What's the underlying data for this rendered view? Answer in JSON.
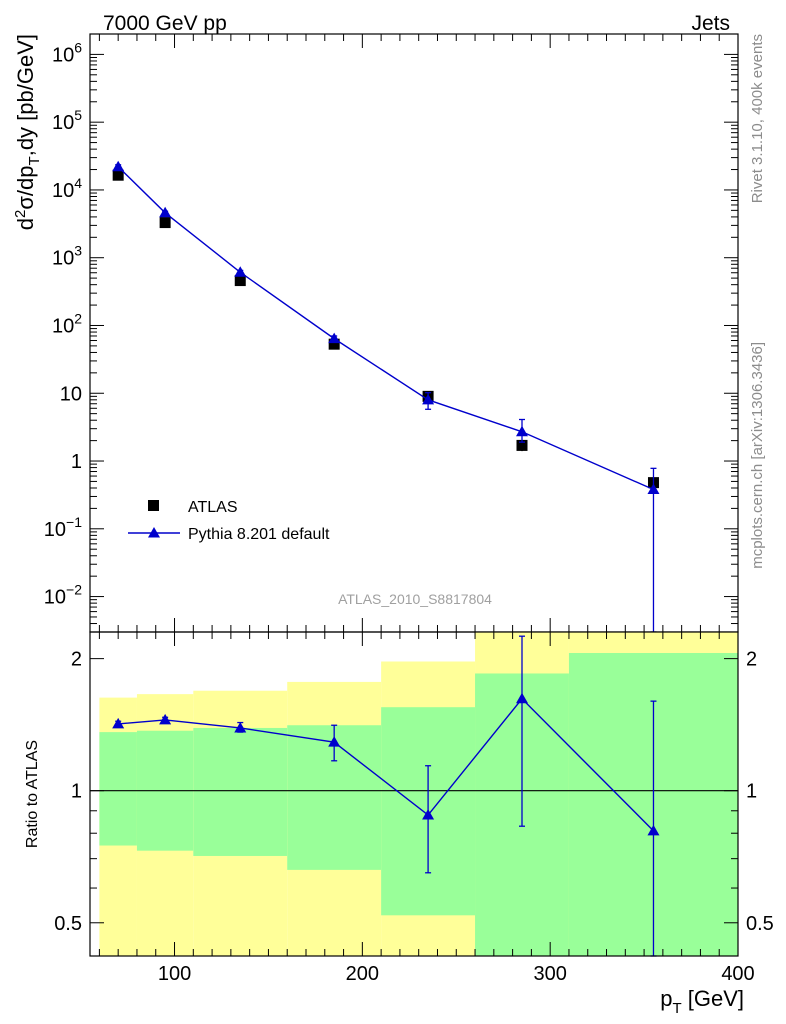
{
  "header": {
    "left": "7000 GeV pp",
    "right": "Jets"
  },
  "side_labels": {
    "top": "Rivet 3.1.10,  400k events",
    "bottom": "mcplots.cern.ch [arXiv:1306.3436]"
  },
  "watermark": "ATLAS_2010_S8817804",
  "colors": {
    "mc": "#0000cc",
    "data": "#000000",
    "band_outer": "#ffff99",
    "band_inner": "#99ff99"
  },
  "chart_data": [
    {
      "type": "scatter",
      "panel": "main",
      "ylabel": {
        "base": "d",
        "sup": "2",
        "mid": "σ/dp",
        "sub": "T",
        "tail": ",dy [pb/GeV]"
      },
      "yscale": "log",
      "ylim": [
        0.003,
        2000000
      ],
      "xlim": [
        55,
        400
      ],
      "ytick_labels": [
        {
          "value": 1000000,
          "base": "10",
          "exp": "6"
        },
        {
          "value": 100000,
          "base": "10",
          "exp": "5"
        },
        {
          "value": 10000,
          "base": "10",
          "exp": "4"
        },
        {
          "value": 1000,
          "base": "10",
          "exp": "3"
        },
        {
          "value": 100,
          "base": "10",
          "exp": "2"
        },
        {
          "value": 10,
          "base": "10",
          "exp": ""
        },
        {
          "value": 1,
          "base": "1",
          "exp": ""
        },
        {
          "value": 0.1,
          "base": "10",
          "exp": "−1"
        },
        {
          "value": 0.01,
          "base": "10",
          "exp": "−2"
        }
      ],
      "legend": {
        "placement": "bottom-left",
        "entries": [
          "ATLAS",
          "Pythia 8.201 default"
        ]
      },
      "series": [
        {
          "name": "ATLAS",
          "marker": "square",
          "points": [
            {
              "x": 70,
              "y": 16500,
              "xlo": 60,
              "xhi": 80,
              "ylo": 14500,
              "yhi": 18500
            },
            {
              "x": 95,
              "y": 3300,
              "xlo": 80,
              "xhi": 110,
              "ylo": 2950,
              "yhi": 3700
            },
            {
              "x": 135,
              "y": 460,
              "xlo": 110,
              "xhi": 160,
              "ylo": 415,
              "yhi": 510
            },
            {
              "x": 185,
              "y": 53,
              "xlo": 160,
              "xhi": 210,
              "ylo": 47,
              "yhi": 59
            },
            {
              "x": 235,
              "y": 9.0,
              "xlo": 210,
              "xhi": 260,
              "ylo": 7.8,
              "yhi": 10.3
            },
            {
              "x": 285,
              "y": 1.7,
              "xlo": 260,
              "xhi": 310,
              "ylo": 1.4,
              "yhi": 2.0
            },
            {
              "x": 355,
              "y": 0.48,
              "xlo": 310,
              "xhi": 400,
              "ylo": 0.4,
              "yhi": 0.57
            }
          ]
        },
        {
          "name": "Pythia 8.201 default",
          "marker": "triangle",
          "points": [
            {
              "x": 70,
              "y": 22000,
              "ylo": 20500,
              "yhi": 23500
            },
            {
              "x": 95,
              "y": 4600,
              "ylo": 4350,
              "yhi": 4850
            },
            {
              "x": 135,
              "y": 610,
              "ylo": 570,
              "yhi": 650
            },
            {
              "x": 185,
              "y": 64,
              "ylo": 58,
              "yhi": 70
            },
            {
              "x": 235,
              "y": 8.0,
              "ylo": 5.8,
              "yhi": 10.2
            },
            {
              "x": 285,
              "y": 2.7,
              "ylo": 1.9,
              "yhi": 4.1
            },
            {
              "x": 355,
              "y": 0.38,
              "ylo": 0.0001,
              "yhi": 0.78
            }
          ]
        }
      ]
    },
    {
      "type": "scatter",
      "panel": "ratio",
      "ylabel": "Ratio to ATLAS",
      "yscale": "log",
      "ylim": [
        0.42,
        2.3
      ],
      "xlim": [
        55,
        400
      ],
      "xlabel": {
        "base": "p",
        "sub": "T",
        "tail": " [GeV]"
      },
      "xticks": [
        100,
        200,
        300,
        400
      ],
      "xtick_labels": [
        "100",
        "200",
        "300",
        "400"
      ],
      "ytick_labels": [
        {
          "value": 2,
          "label": "2"
        },
        {
          "value": 1,
          "label": "1"
        },
        {
          "value": 0.5,
          "label": "0.5"
        }
      ],
      "reference_line": 1,
      "bands": [
        {
          "xlo": 60,
          "xhi": 80,
          "outer": [
            0.36,
            1.63
          ],
          "inner": [
            0.75,
            1.36
          ]
        },
        {
          "xlo": 80,
          "xhi": 110,
          "outer": [
            0.36,
            1.66
          ],
          "inner": [
            0.73,
            1.37
          ]
        },
        {
          "xlo": 110,
          "xhi": 160,
          "outer": [
            0.36,
            1.69
          ],
          "inner": [
            0.71,
            1.39
          ]
        },
        {
          "xlo": 160,
          "xhi": 210,
          "outer": [
            0.36,
            1.77
          ],
          "inner": [
            0.66,
            1.41
          ]
        },
        {
          "xlo": 210,
          "xhi": 260,
          "outer": [
            0.36,
            1.97
          ],
          "inner": [
            0.52,
            1.55
          ]
        },
        {
          "xlo": 260,
          "xhi": 310,
          "outer": [
            0.36,
            2.4
          ],
          "inner": [
            0.36,
            1.85
          ]
        },
        {
          "xlo": 310,
          "xhi": 400,
          "outer": [
            0.36,
            2.4
          ],
          "inner": [
            0.36,
            2.06
          ]
        }
      ],
      "series": [
        {
          "name": "Pythia 8.201 default",
          "marker": "triangle",
          "points": [
            {
              "x": 70,
              "y": 1.42,
              "ylo": 1.4,
              "yhi": 1.44
            },
            {
              "x": 95,
              "y": 1.45,
              "ylo": 1.43,
              "yhi": 1.47
            },
            {
              "x": 135,
              "y": 1.39,
              "ylo": 1.36,
              "yhi": 1.43
            },
            {
              "x": 185,
              "y": 1.29,
              "ylo": 1.17,
              "yhi": 1.41
            },
            {
              "x": 235,
              "y": 0.88,
              "ylo": 0.65,
              "yhi": 1.14
            },
            {
              "x": 285,
              "y": 1.62,
              "ylo": 0.83,
              "yhi": 2.25
            },
            {
              "x": 355,
              "y": 0.81,
              "ylo": 0.3,
              "yhi": 1.6
            }
          ]
        }
      ]
    }
  ]
}
